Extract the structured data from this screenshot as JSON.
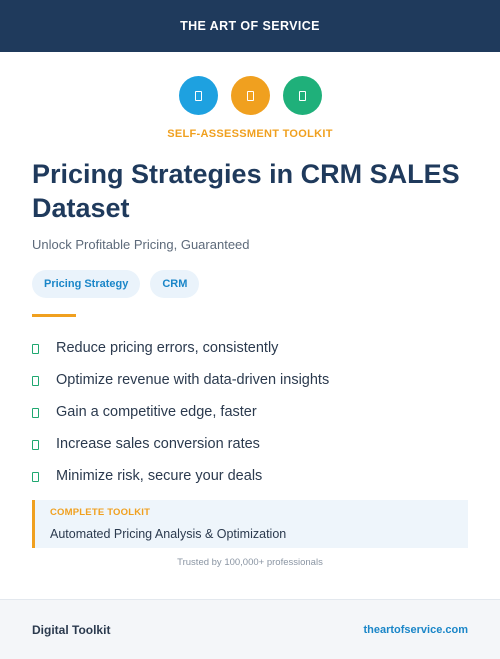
{
  "header": {
    "brand": "THE ART OF SERVICE",
    "color": "#1f3a5c"
  },
  "icons": [
    {
      "name": "document-icon",
      "color": "#1ea1e0"
    },
    {
      "name": "document-icon",
      "color": "#f0a01f"
    },
    {
      "name": "document-icon",
      "color": "#1fb07a"
    }
  ],
  "kicker": "SELF-ASSESSMENT TOOLKIT",
  "title": "Pricing Strategies in CRM SALES Dataset",
  "subtitle": "Unlock Profitable Pricing, Guaranteed",
  "tags": [
    "Pricing Strategy",
    "CRM"
  ],
  "benefits": [
    "Reduce pricing errors, consistently",
    "Optimize revenue with data-driven insights",
    "Gain a competitive edge, faster",
    "Increase sales conversion rates",
    "Minimize risk, secure your deals"
  ],
  "toolkit": {
    "label": "COMPLETE TOOLKIT",
    "value": "Automated Pricing Analysis & Optimization"
  },
  "trusted": "Trusted by 100,000+ professionals",
  "footer": {
    "left": "Digital Toolkit",
    "right": "theartofservice.com"
  },
  "colors": {
    "accent": "#f0a01f",
    "link": "#1a86c8",
    "check": "#1fa870"
  }
}
